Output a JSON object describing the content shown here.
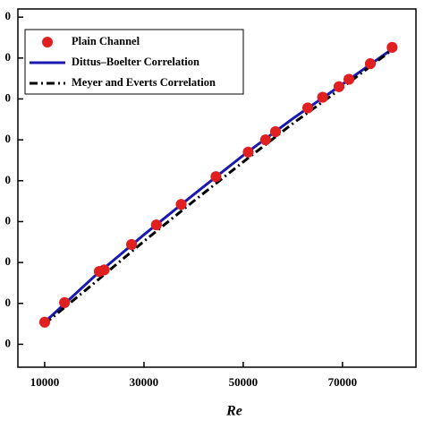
{
  "chart_data": {
    "type": "scatter-line",
    "x_label": "Re",
    "xlim": [
      4600,
      84800
    ],
    "xticks": [
      10000,
      30000,
      50000,
      70000
    ],
    "ylim": [
      22,
      460
    ],
    "yticks": [
      {
        "value": 50,
        "label": "0"
      },
      {
        "value": 100,
        "label": "0"
      },
      {
        "value": 150,
        "label": "0"
      },
      {
        "value": 200,
        "label": "0"
      },
      {
        "value": 250,
        "label": "0"
      },
      {
        "value": 300,
        "label": "0"
      },
      {
        "value": 350,
        "label": "0"
      },
      {
        "value": 400,
        "label": "0"
      },
      {
        "value": 450,
        "label": "0"
      }
    ],
    "legend": "upper left",
    "series": [
      {
        "name": "Plain Channel",
        "kind": "scatter",
        "color": "#e02020",
        "x": [
          10000,
          14000,
          21000,
          22000,
          27500,
          32500,
          37500,
          44500,
          51000,
          54500,
          56500,
          63000,
          66000,
          69300,
          71300,
          75600,
          80000
        ],
        "values": [
          77,
          101,
          139,
          141,
          172,
          196,
          221,
          255,
          285,
          300,
          310,
          339,
          352,
          365,
          374,
          393,
          413
        ]
      },
      {
        "name": "Dittus–Boelter Correlation",
        "kind": "line",
        "color": "#1a1ab0",
        "dash": "solid",
        "x": [
          10000,
          20000,
          30000,
          40000,
          50000,
          60000,
          70000,
          80000
        ],
        "values": [
          77,
          133,
          184,
          233,
          281,
          326,
          368,
          411
        ]
      },
      {
        "name": "Meyer and Everts Correlation",
        "kind": "line",
        "color": "#000000",
        "dash": "dashdot",
        "x": [
          10000,
          20000,
          30000,
          40000,
          50000,
          60000,
          70000,
          80000
        ],
        "values": [
          75,
          125,
          176,
          225,
          273,
          320,
          364,
          410
        ]
      }
    ]
  }
}
